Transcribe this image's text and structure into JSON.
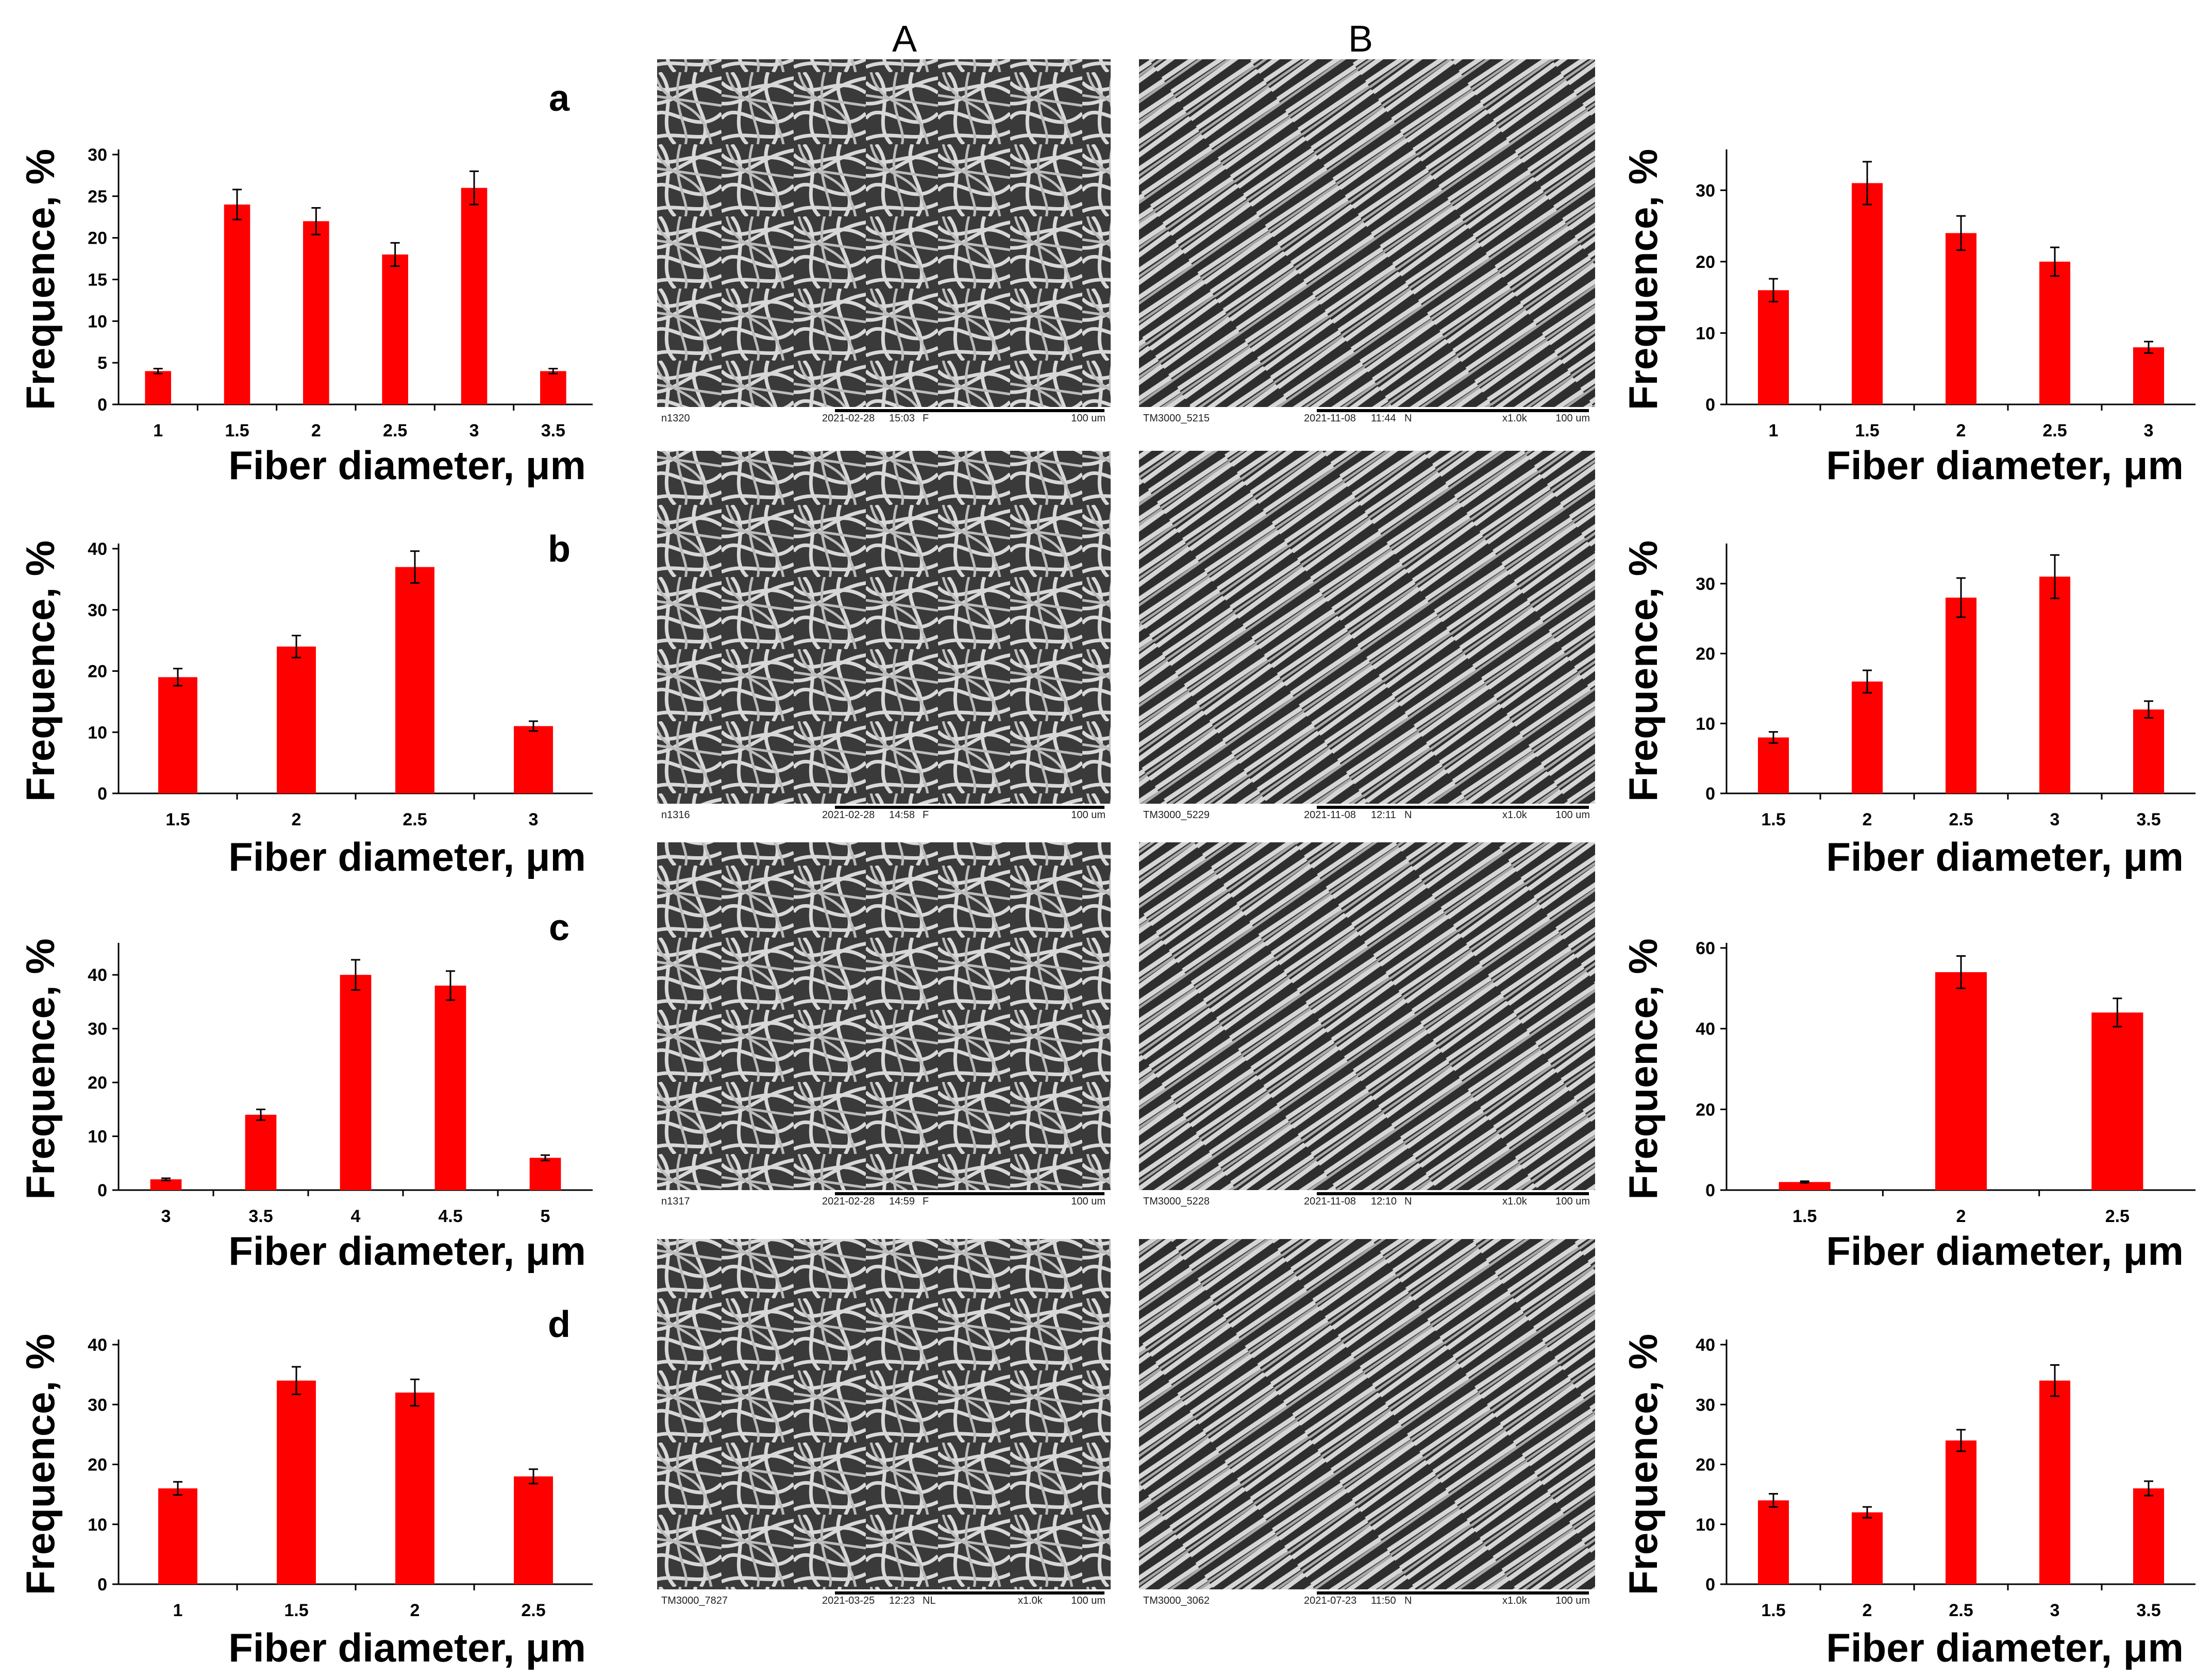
{
  "columns": {
    "A": "A",
    "B": "B"
  },
  "row_labels": [
    "a",
    "b",
    "c",
    "d"
  ],
  "sem_captions": [
    {
      "id": "n1320",
      "date": "2021-02-28",
      "time": "15:03",
      "mode": "F",
      "mag": "",
      "scale": "100 um"
    },
    {
      "id": "TM3000_5215",
      "date": "2021-11-08",
      "time": "11:44",
      "mode": "N",
      "mag": "x1.0k",
      "scale": "100 um"
    },
    {
      "id": "n1316",
      "date": "2021-02-28",
      "time": "14:58",
      "mode": "F",
      "mag": "",
      "scale": "100 um"
    },
    {
      "id": "TM3000_5229",
      "date": "2021-11-08",
      "time": "12:11",
      "mode": "N",
      "mag": "x1.0k",
      "scale": "100 um"
    },
    {
      "id": "n1317",
      "date": "2021-02-28",
      "time": "14:59",
      "mode": "F",
      "mag": "",
      "scale": "100 um"
    },
    {
      "id": "TM3000_5228",
      "date": "2021-11-08",
      "time": "12:10",
      "mode": "N",
      "mag": "x1.0k",
      "scale": "100 um"
    },
    {
      "id": "TM3000_7827",
      "date": "2021-03-25",
      "time": "12:23",
      "mode": "NL",
      "mag": "x1.0k",
      "scale": "100 um"
    },
    {
      "id": "TM3000_3062",
      "date": "2021-07-23",
      "time": "11:50",
      "mode": "N",
      "mag": "x1.0k",
      "scale": "100 um"
    }
  ],
  "chart_data": [
    {
      "type": "bar",
      "panel": "a-A",
      "categories": [
        "1",
        "1.5",
        "2",
        "2.5",
        "3",
        "3.5"
      ],
      "values": [
        4,
        24,
        22,
        18,
        26,
        4
      ],
      "errors": [
        0.3,
        1.8,
        1.6,
        1.4,
        2.0,
        0.3
      ],
      "ylim": [
        0,
        30
      ],
      "yticks": [
        0,
        5,
        10,
        15,
        20,
        25,
        30
      ],
      "xlabel": "Fiber diameter, μm",
      "ylabel": "Frequence, %",
      "color": "#ff0000"
    },
    {
      "type": "bar",
      "panel": "a-B",
      "categories": [
        "1",
        "1.5",
        "2",
        "2.5",
        "3"
      ],
      "values": [
        16,
        31,
        24,
        20,
        8
      ],
      "errors": [
        1.6,
        3.0,
        2.4,
        2.0,
        0.8
      ],
      "ylim": [
        0,
        35
      ],
      "yticks": [
        0,
        10,
        20,
        30
      ],
      "xlabel": "Fiber diameter, μm",
      "ylabel": "Frequence, %",
      "color": "#ff0000"
    },
    {
      "type": "bar",
      "panel": "b-A",
      "categories": [
        "1.5",
        "2",
        "2.5",
        "3"
      ],
      "values": [
        19,
        24,
        37,
        11
      ],
      "errors": [
        1.4,
        1.8,
        2.6,
        0.8
      ],
      "ylim": [
        0,
        40
      ],
      "yticks": [
        0,
        10,
        20,
        30,
        40
      ],
      "xlabel": "Fiber diameter, μm",
      "ylabel": "Frequence, %",
      "color": "#ff0000"
    },
    {
      "type": "bar",
      "panel": "b-B",
      "categories": [
        "1.5",
        "2",
        "2.5",
        "3",
        "3.5"
      ],
      "values": [
        8,
        16,
        28,
        31,
        12
      ],
      "errors": [
        0.8,
        1.6,
        2.8,
        3.1,
        1.2
      ],
      "ylim": [
        0,
        35
      ],
      "yticks": [
        0,
        10,
        20,
        30
      ],
      "xlabel": "Fiber diameter, μm",
      "ylabel": "Frequence, %",
      "color": "#ff0000"
    },
    {
      "type": "bar",
      "panel": "c-A",
      "categories": [
        "3",
        "3.5",
        "4",
        "4.5",
        "5"
      ],
      "values": [
        2,
        14,
        40,
        38,
        6
      ],
      "errors": [
        0.2,
        1.0,
        2.8,
        2.7,
        0.5
      ],
      "ylim": [
        0,
        45
      ],
      "yticks": [
        0,
        10,
        20,
        30,
        40
      ],
      "xlabel": "Fiber diameter, μm",
      "ylabel": "Frequence, %",
      "color": "#ff0000"
    },
    {
      "type": "bar",
      "panel": "c-B",
      "categories": [
        "1.5",
        "2",
        "2.5"
      ],
      "values": [
        2,
        54,
        44
      ],
      "errors": [
        0.2,
        4.0,
        3.5
      ],
      "ylim": [
        0,
        60
      ],
      "yticks": [
        0,
        20,
        40,
        60
      ],
      "xlabel": "Fiber diameter, μm",
      "ylabel": "Frequence, %",
      "color": "#ff0000"
    },
    {
      "type": "bar",
      "panel": "d-A",
      "categories": [
        "1",
        "1.5",
        "2",
        "2.5"
      ],
      "values": [
        16,
        34,
        32,
        18
      ],
      "errors": [
        1.1,
        2.3,
        2.2,
        1.2
      ],
      "ylim": [
        0,
        40
      ],
      "yticks": [
        0,
        10,
        20,
        30,
        40
      ],
      "xlabel": "Fiber diameter, μm",
      "ylabel": "Frequence, %",
      "color": "#ff0000"
    },
    {
      "type": "bar",
      "panel": "d-B",
      "categories": [
        "1.5",
        "2",
        "2.5",
        "3",
        "3.5"
      ],
      "values": [
        14,
        12,
        24,
        34,
        16
      ],
      "errors": [
        1.1,
        0.9,
        1.8,
        2.6,
        1.2
      ],
      "ylim": [
        0,
        40
      ],
      "yticks": [
        0,
        10,
        20,
        30,
        40
      ],
      "xlabel": "Fiber diameter, μm",
      "ylabel": "Frequence, %",
      "color": "#ff0000"
    }
  ]
}
